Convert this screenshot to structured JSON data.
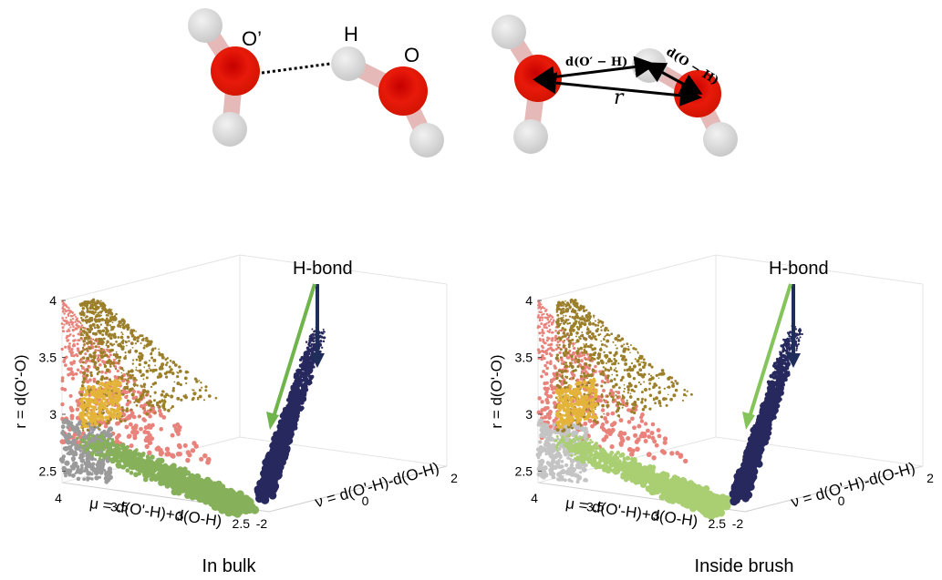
{
  "molecules": {
    "left": {
      "atom_labels": [
        "O’",
        "H",
        "O"
      ]
    },
    "right": {
      "dist_label_1": "d(O′ − H)",
      "dist_label_2": "d(O − H)",
      "dist_label_r": "r"
    }
  },
  "chart_data": [
    {
      "type": "scatter",
      "caption": "In bulk",
      "annotation": "H-bond",
      "zlabel": "r = d(O'-O)",
      "xlabel": "μ = d(O'-H)+d(O-H)",
      "ylabel": "ν = d(O'-H)-d(O-H)",
      "z_ticks": [
        "2.5",
        "3",
        "3.5",
        "4"
      ],
      "x_ticks": [
        "4",
        "3.5",
        "3",
        "2.5"
      ],
      "y_ticks": [
        "-2",
        "0",
        "2"
      ],
      "xlim": [
        2.3,
        4
      ],
      "ylim": [
        -2,
        2
      ],
      "zlim": [
        2.4,
        4
      ],
      "colors": {
        "pink": "#e8827a",
        "gray": "#9a9a9a",
        "green": "#86b05a",
        "yellow": "#e4b43a",
        "olive": "#9c7f2a",
        "navy": "#27285e",
        "arrow_green": "#70b44c",
        "arrow_navy": "#1f2d5a"
      }
    },
    {
      "type": "scatter",
      "caption": "Inside brush",
      "annotation": "H-bond",
      "zlabel": "r = d(O'-O)",
      "xlabel": "μ = d(O'-H)+d(O-H)",
      "ylabel": "ν = d(O'-H)-d(O-H)",
      "z_ticks": [
        "2.5",
        "3",
        "3.5",
        "4"
      ],
      "x_ticks": [
        "4",
        "3.5",
        "3",
        "2.5"
      ],
      "y_ticks": [
        "-2",
        "0",
        "2"
      ],
      "xlim": [
        2.3,
        4
      ],
      "ylim": [
        -2,
        2
      ],
      "zlim": [
        2.4,
        4
      ],
      "colors": {
        "pink": "#e8827a",
        "gray": "#c4c4c4",
        "green": "#a9cf72",
        "yellow": "#e4b43a",
        "olive": "#9c7f2a",
        "navy": "#27285e",
        "arrow_green": "#84c45a",
        "arrow_navy": "#1f2d5a"
      }
    }
  ]
}
